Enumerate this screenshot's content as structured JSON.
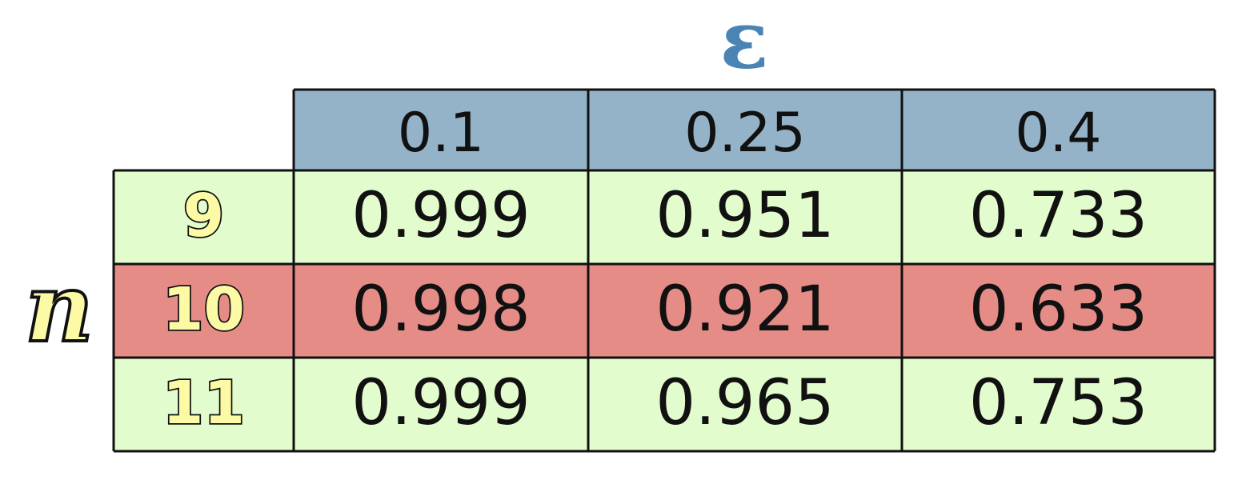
{
  "chart_data": {
    "type": "table",
    "column_axis_label": "ε",
    "row_axis_label": "n",
    "columns": [
      "0.1",
      "0.25",
      "0.4"
    ],
    "rows": [
      {
        "label": "9",
        "values": [
          "0.999",
          "0.951",
          "0.733"
        ],
        "highlight": false
      },
      {
        "label": "10",
        "values": [
          "0.998",
          "0.921",
          "0.633"
        ],
        "highlight": true
      },
      {
        "label": "11",
        "values": [
          "0.999",
          "0.965",
          "0.753"
        ],
        "highlight": false
      }
    ]
  },
  "colors": {
    "header_fill": "#94b3c8",
    "row_fill": "#e3fccd",
    "highlight_fill": "#e68c87",
    "epsilon_color": "#4a84b5",
    "row_label_fill": "#fdfaa6",
    "grid_line": "#111111",
    "text": "#111111"
  }
}
